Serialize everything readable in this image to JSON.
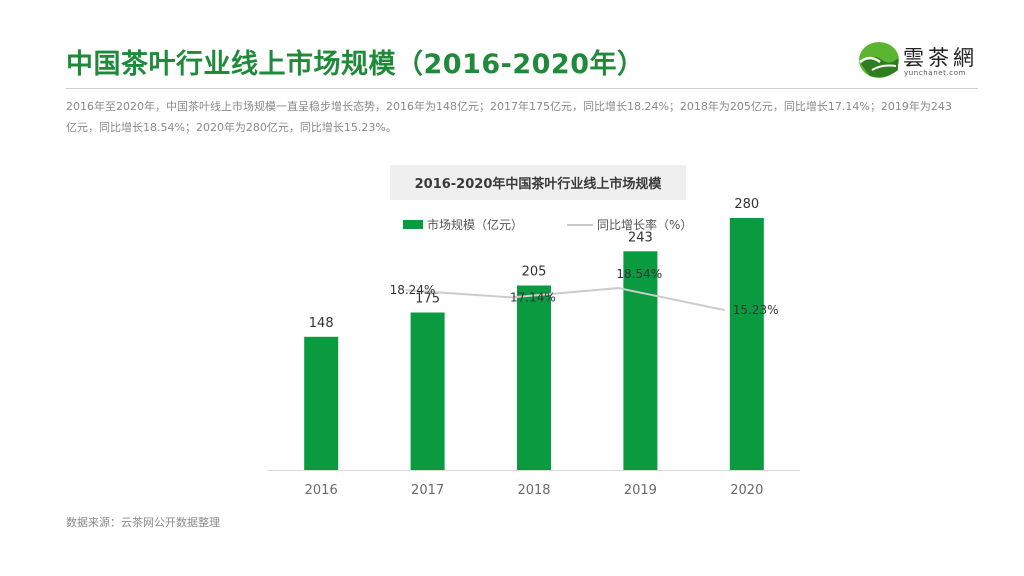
{
  "page": {
    "title": "中国茶叶行业线上市场规模（2016-2020年）",
    "summary": "2016年至2020年，中国茶叶线上市场规模一直呈稳步增长态势，2016年为148亿元；2017年175亿元，同比增长18.24%；2018年为205亿元，同比增长17.14%；2019年为243亿元，同比增长18.54%；2020年为280亿元，同比增长15.23%。",
    "source": "数据来源：云茶网公开数据整理"
  },
  "logo": {
    "text": "雲茶網",
    "sub": "yunchanet.com",
    "colors": {
      "green": "#5cb531",
      "dark": "#2f7d20"
    }
  },
  "colors": {
    "title": "#1f8a3a",
    "bar": "#0a9a40",
    "line": "#cccccc"
  },
  "chart_data": {
    "type": "bar",
    "title": "2016-2020年中国茶叶行业线上市场规模",
    "categories": [
      "2016",
      "2017",
      "2018",
      "2019",
      "2020"
    ],
    "series": [
      {
        "name": "市场规模（亿元）",
        "type": "bar",
        "values": [
          148,
          175,
          205,
          243,
          280
        ]
      },
      {
        "name": "同比增长率（%）",
        "type": "line",
        "values": [
          null,
          18.24,
          17.14,
          18.54,
          15.23
        ]
      }
    ],
    "bar_labels": [
      "148",
      "175",
      "205",
      "243",
      "280"
    ],
    "growth_labels": [
      "",
      "18.24%",
      "17.14%",
      "18.54%",
      "15.23%"
    ],
    "ylim": [
      0,
      300
    ],
    "growth_ylim": [
      0,
      35
    ],
    "grid": false,
    "legend_position": "top"
  }
}
